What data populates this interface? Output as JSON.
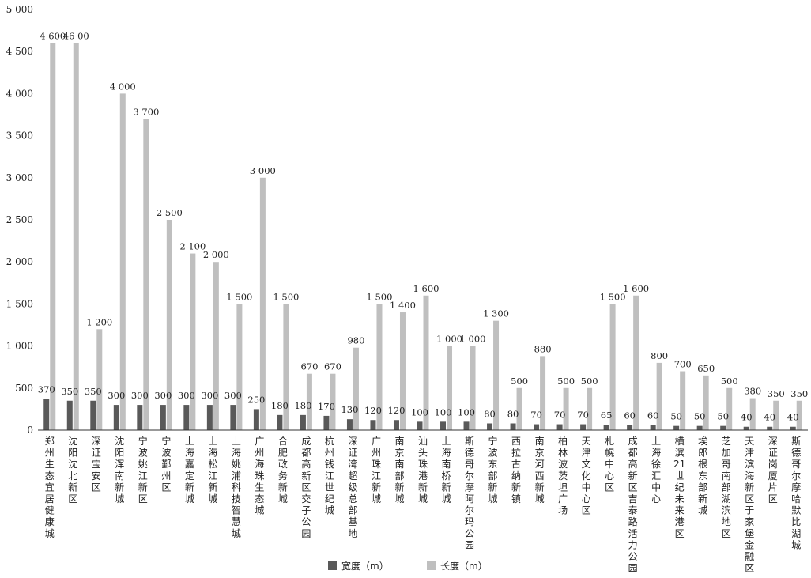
{
  "chart_data": {
    "type": "bar",
    "title": "",
    "xlabel": "",
    "ylabel": "",
    "ylim": [
      0,
      5000
    ],
    "yticks": [
      0,
      500,
      1000,
      1500,
      2000,
      2500,
      3000,
      3500,
      4000,
      4500,
      5000
    ],
    "ytick_labels": [
      "0",
      "500",
      "1 000",
      "1 500",
      "2 000",
      "2 500",
      "3 000",
      "3 500",
      "4 000",
      "4 500",
      "5 000"
    ],
    "legend_position": "bottom-center",
    "grid": false,
    "categories": [
      "郑州生态宜居健康城",
      "沈阳沈北新区",
      "深证宝安区",
      "沈阳浑南新城",
      "宁波姚江新区",
      "宁波鄞州区",
      "上海嘉定新城",
      "上海松江新城",
      "上海姚浦科技智慧城",
      "广州海珠生态城",
      "合肥政务新城",
      "成都高新区交子公园",
      "杭州钱江世纪城",
      "深证湾超级总部基地",
      "广州珠江新城",
      "南京南部新城",
      "汕头珠港新城",
      "上海南桥新城",
      "斯德哥尔摩阿尔玛公园",
      "宁波东部新城",
      "西拉古纳新镇",
      "南京河西新城",
      "柏林波茨坦广场",
      "天津文化中心区",
      "札幌中心区",
      "成都高新区吉泰路活力公园",
      "上海徐汇中心",
      "横滨21世纪未来港区",
      "埃郎根东部新城",
      "芝加哥南部湖滨地区",
      "天津滨海新区于家堡金融区",
      "深证岗厦片区",
      "斯德哥尔摩哈默比湖城"
    ],
    "series": [
      {
        "name": "宽度（m）",
        "color": "#595959",
        "values": [
          370,
          350,
          350,
          300,
          300,
          300,
          300,
          300,
          300,
          250,
          180,
          180,
          170,
          130,
          120,
          120,
          100,
          100,
          100,
          80,
          80,
          70,
          70,
          70,
          65,
          60,
          60,
          50,
          50,
          50,
          40,
          40,
          40
        ],
        "labels": [
          "370",
          "350",
          "350",
          "300",
          "300",
          "300",
          "300",
          "300",
          "300",
          "250",
          "180",
          "180",
          "170",
          "130",
          "120",
          "120",
          "100",
          "100",
          "100",
          "80",
          "80",
          "70",
          "70",
          "70",
          "65",
          "60",
          "60",
          "50",
          "50",
          "50",
          "40",
          "40",
          "40"
        ]
      },
      {
        "name": "长度（m）",
        "color": "#bfbfbf",
        "values": [
          4600,
          4600,
          1200,
          4000,
          3700,
          2500,
          2100,
          2000,
          1500,
          3000,
          1500,
          670,
          670,
          980,
          1500,
          1400,
          1600,
          1000,
          1000,
          1300,
          500,
          880,
          500,
          500,
          1500,
          1600,
          800,
          700,
          650,
          500,
          380,
          350,
          350
        ],
        "labels": [
          "4 600",
          "46 00",
          "1 200",
          "4 000",
          "3 700",
          "2 500",
          "2 100",
          "2 000",
          "1 500",
          "3 000",
          "1 500",
          "670",
          "670",
          "980",
          "1 500",
          "1 400",
          "1 600",
          "1 000",
          "1 000",
          "1 300",
          "500",
          "880",
          "500",
          "500",
          "1 500",
          "1 600",
          "800",
          "700",
          "650",
          "500",
          "380",
          "350",
          "350"
        ]
      }
    ]
  }
}
